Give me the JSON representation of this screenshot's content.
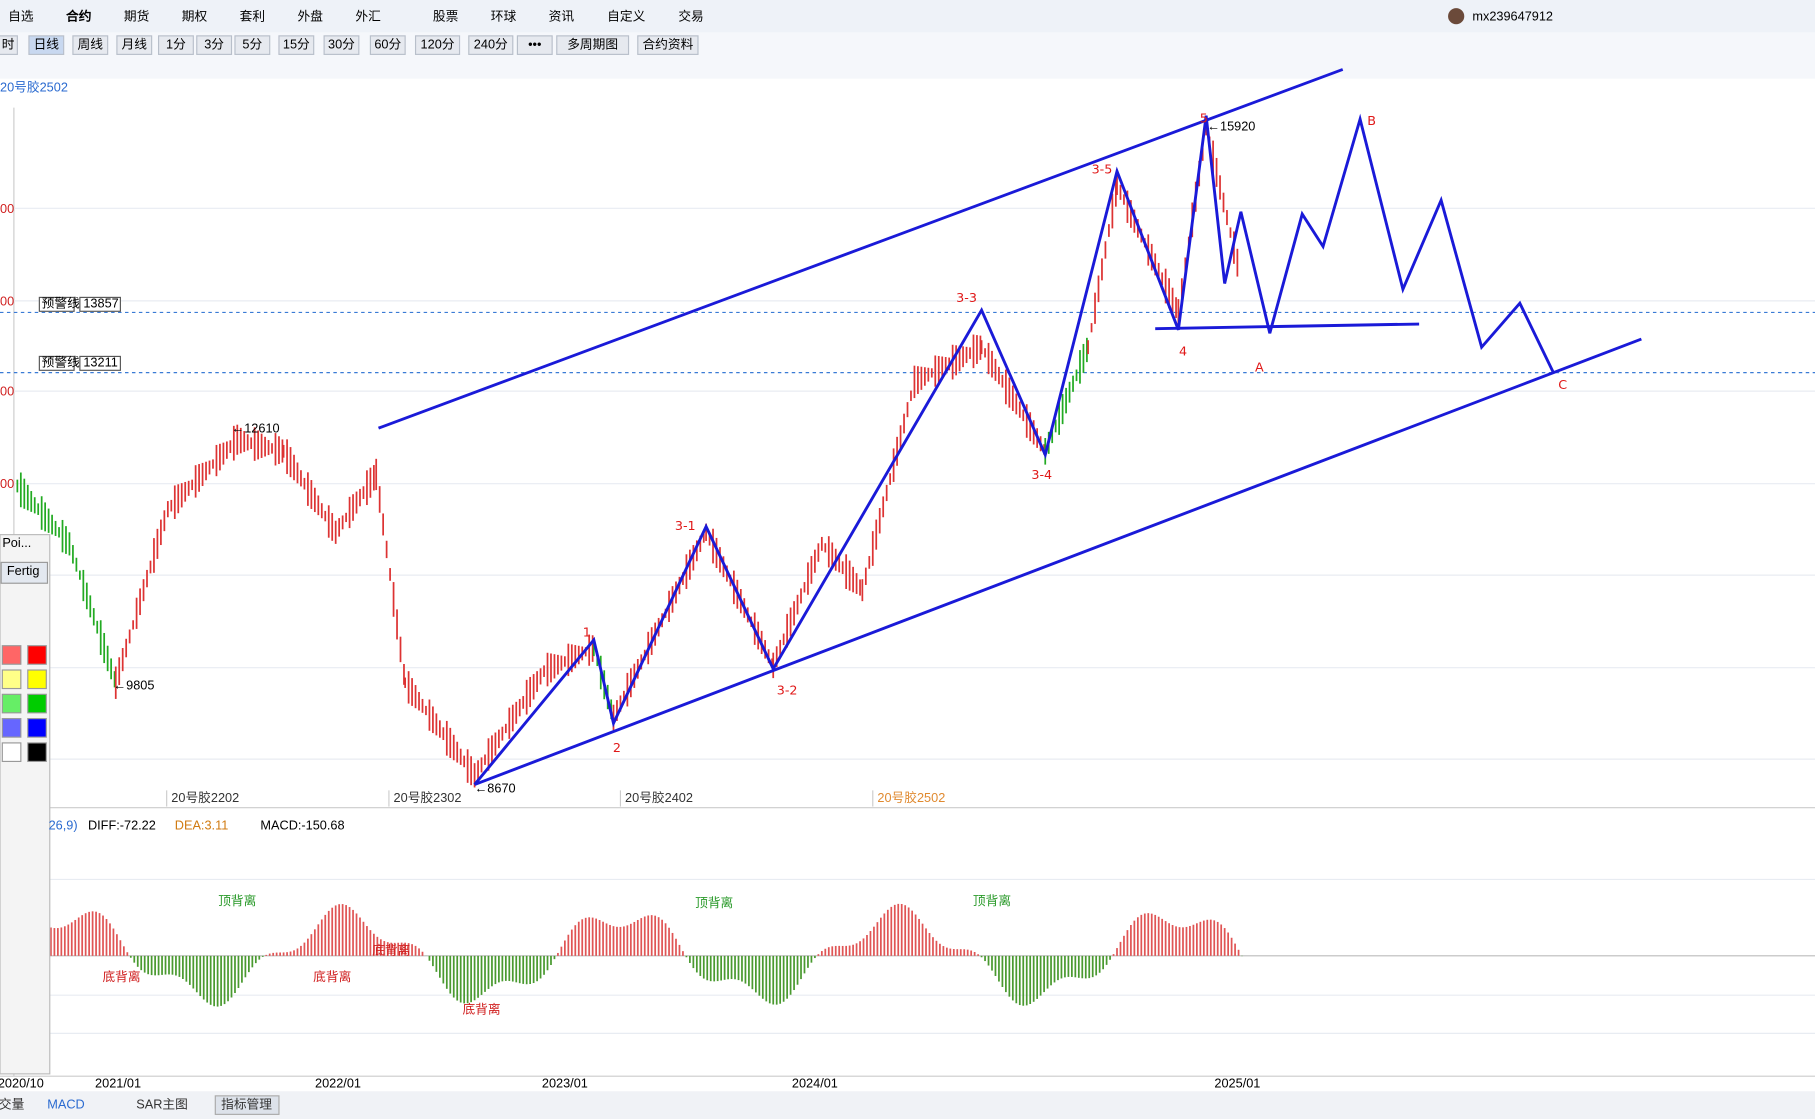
{
  "menu": [
    "自选",
    "合约",
    "期货",
    "期权",
    "套利",
    "外盘",
    "外汇",
    "股票",
    "环球",
    "资讯",
    "自定义",
    "交易"
  ],
  "user": "mx239647912",
  "periods": [
    "时",
    "日线",
    "周线",
    "月线",
    "1分",
    "3分",
    "5分",
    "15分",
    "30分",
    "60分",
    "120分",
    "240分",
    "•••",
    "多周期图",
    "合约资料"
  ],
  "instrument": "20号胶2502",
  "y_axis_labels": [
    "00",
    "00",
    "00",
    "00"
  ],
  "alerts": [
    {
      "label": "预警线",
      "value": "13857"
    },
    {
      "label": "预警线",
      "value": "13211"
    }
  ],
  "price_labels": [
    "←15920",
    "←12610",
    "←9805",
    "←8670"
  ],
  "contract_labels": [
    "20号胶2202",
    "20号胶2302",
    "20号胶2402",
    "20号胶2502"
  ],
  "wave_labels": [
    "1",
    "2",
    "3-1",
    "3-2",
    "3-3",
    "3-4",
    "3-5",
    "4",
    "5",
    "A",
    "B",
    "C"
  ],
  "macd": {
    "params": "26,9)",
    "diff": "DIFF:-72.22",
    "dea": "DEA:3.11",
    "macd": "MACD:-150.68"
  },
  "divergence_labels": [
    "顶背离",
    "底背离",
    "底背离",
    "底背离",
    "底背离",
    "顶背离",
    "顶背离"
  ],
  "x_axis_labels": [
    "2020/10",
    "2021/01",
    "2022/01",
    "2023/01",
    "2024/01",
    "2025/01"
  ],
  "bottom_tabs": [
    "交量",
    "MACD",
    "SAR主图",
    "指标管理"
  ],
  "palette": {
    "title": "Poi...",
    "button": "Fertig"
  }
}
